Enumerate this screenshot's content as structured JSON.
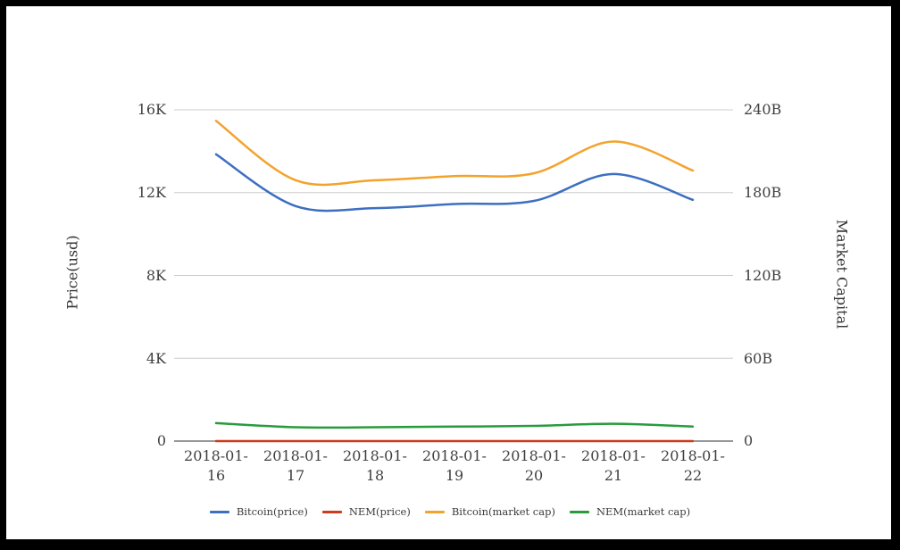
{
  "chart_data": {
    "type": "line",
    "smooth": true,
    "grid": true,
    "legend_position": "bottom",
    "categories": [
      "2018-01-16",
      "2018-01-17",
      "2018-01-18",
      "2018-01-19",
      "2018-01-20",
      "2018-01-21",
      "2018-01-22"
    ],
    "left_axis": {
      "title": "Price(usd)",
      "range": [
        0,
        16000
      ],
      "tick_labels": [
        "16K",
        "12K",
        "8K",
        "4K",
        "0"
      ],
      "tick_values": [
        16000,
        12000,
        8000,
        4000,
        0
      ]
    },
    "right_axis": {
      "title": "Market Capital",
      "range": [
        0,
        240
      ],
      "tick_labels": [
        "240B",
        "180B",
        "120B",
        "60B",
        "0"
      ],
      "tick_values": [
        240,
        180,
        120,
        60,
        0
      ]
    },
    "series": [
      {
        "name": "Bitcoin(price)",
        "axis": "left",
        "color": "#3d6fc1",
        "values": [
          13850,
          11350,
          11250,
          11450,
          11600,
          12900,
          11650
        ]
      },
      {
        "name": "NEM(price)",
        "axis": "left",
        "color": "#cc3b1e",
        "values": [
          1.4,
          1.1,
          1.0,
          1.0,
          1.0,
          1.1,
          1.0
        ]
      },
      {
        "name": "Bitcoin(market cap)",
        "axis": "right",
        "color": "#f3a32c",
        "values": [
          232,
          189,
          189,
          192,
          194,
          217,
          196
        ]
      },
      {
        "name": "NEM(market cap)",
        "axis": "right",
        "color": "#289c3c",
        "values": [
          13,
          10,
          10,
          10.5,
          11,
          12.5,
          10.5
        ]
      }
    ]
  },
  "styles": {
    "grid_color": "#cccccc",
    "axis_line_color": "#333333",
    "text_color": "#404040",
    "background": "#ffffff",
    "frame_color": "#000000"
  }
}
